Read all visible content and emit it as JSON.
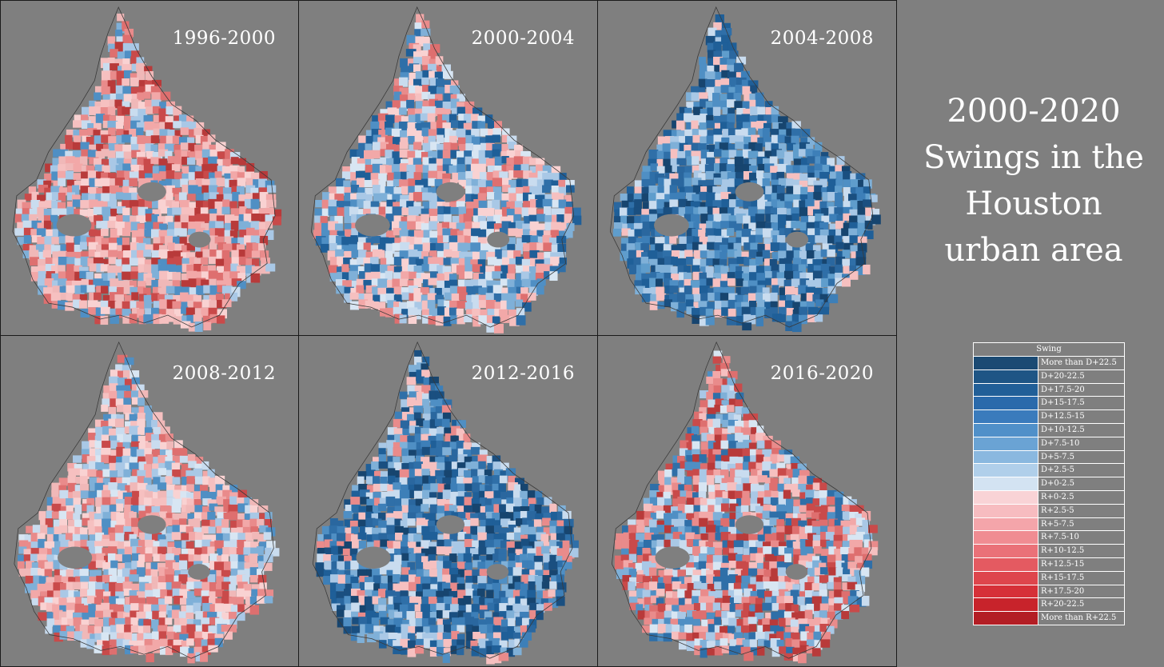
{
  "title": {
    "line1": "2000-2020",
    "line2": "Swings in the",
    "line3": "Houston",
    "line4": "urban area"
  },
  "panels": [
    {
      "label": "1996-2000",
      "palette": [
        "#f2a8a8",
        "#e98b8b",
        "#de6f6f",
        "#c94a4a",
        "#f6c0c0",
        "#f9d2d2",
        "#c9dcef",
        "#a9c8e6",
        "#7fb0d8",
        "#4f8fc4",
        "#b83a3a",
        "#f0b8b8"
      ]
    },
    {
      "label": "2000-2004",
      "palette": [
        "#c9dcef",
        "#a9c8e6",
        "#7fb0d8",
        "#4f8fc4",
        "#2f6fa8",
        "#f6c0c0",
        "#f2a8a8",
        "#e98b8b",
        "#f9d2d2",
        "#d8e6f3",
        "#1f5f98",
        "#de6f6f"
      ]
    },
    {
      "label": "2004-2008",
      "palette": [
        "#2f6fa8",
        "#1f5f98",
        "#4f8fc4",
        "#7fb0d8",
        "#1a4f80",
        "#a9c8e6",
        "#3d7fb8",
        "#5f9dcc",
        "#c9dcef",
        "#f6c0c0",
        "#2a679f",
        "#17456f"
      ]
    },
    {
      "label": "2008-2012",
      "palette": [
        "#f2a8a8",
        "#f6c0c0",
        "#e98b8b",
        "#c9dcef",
        "#a9c8e6",
        "#f9d2d2",
        "#7fb0d8",
        "#de6f6f",
        "#d8e6f3",
        "#4f8fc4",
        "#f0b8b8",
        "#c94a4a"
      ]
    },
    {
      "label": "2012-2016",
      "palette": [
        "#1f5f98",
        "#2f6fa8",
        "#4f8fc4",
        "#1a4f80",
        "#7fb0d8",
        "#a9c8e6",
        "#3d7fb8",
        "#f6c0c0",
        "#17456f",
        "#c9dcef",
        "#2a679f",
        "#e98b8b"
      ]
    },
    {
      "label": "2016-2020",
      "palette": [
        "#7fb0d8",
        "#a9c8e6",
        "#4f8fc4",
        "#c9dcef",
        "#f2a8a8",
        "#e98b8b",
        "#de6f6f",
        "#2f6fa8",
        "#f6c0c0",
        "#c94a4a",
        "#d8e6f3",
        "#b83a3a"
      ]
    }
  ],
  "legend": {
    "header": "Swing",
    "items": [
      {
        "label": "More than D+22.5",
        "color": "#1b4a73"
      },
      {
        "label": "D+20-22.5",
        "color": "#1e5585"
      },
      {
        "label": "D+17.5-20",
        "color": "#215f98"
      },
      {
        "label": "D+15-17.5",
        "color": "#2a6aab"
      },
      {
        "label": "D+12.5-15",
        "color": "#3a7bbc"
      },
      {
        "label": "D+10-12.5",
        "color": "#5090c9"
      },
      {
        "label": "D+7.5-10",
        "color": "#6aa3d4"
      },
      {
        "label": "D+5-7.5",
        "color": "#8ab8df"
      },
      {
        "label": "D+2.5-5",
        "color": "#b0cfea"
      },
      {
        "label": "D+0-2.5",
        "color": "#d3e3f2"
      },
      {
        "label": "R+0-2.5",
        "color": "#f9d3d6"
      },
      {
        "label": "R+2.5-5",
        "color": "#f7bcc0"
      },
      {
        "label": "R+5-7.5",
        "color": "#f4a5aa"
      },
      {
        "label": "R+7.5-10",
        "color": "#f08c92"
      },
      {
        "label": "R+10-12.5",
        "color": "#ea7178"
      },
      {
        "label": "R+12.5-15",
        "color": "#e45a61"
      },
      {
        "label": "R+15-17.5",
        "color": "#de454c"
      },
      {
        "label": "R+17.5-20",
        "color": "#d63038"
      },
      {
        "label": "R+20-22.5",
        "color": "#c8232b"
      },
      {
        "label": "More than R+22.5",
        "color": "#b31d24"
      }
    ]
  }
}
